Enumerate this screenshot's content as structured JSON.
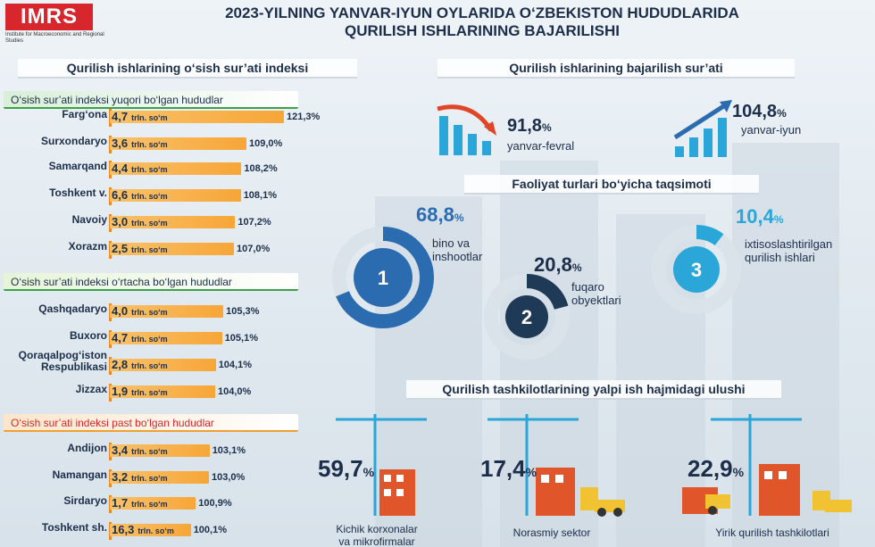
{
  "header": {
    "logo": "IMRS",
    "logo_sub": "Institute for Macroeconomic and Regional Studies",
    "title_line1": "2023-YILNING YANVAR-IYUN OYLARIDA O‘ZBEKISTON HUDUDLARIDA",
    "title_line2": "QURILISH ISHLARINING BAJARILISHI"
  },
  "index_section": {
    "title": "Qurilish ishlarining o‘sish sur’ati indeksi",
    "unit": "trln. so‘m",
    "groups": [
      {
        "label": "O‘sish sur’ati indeksi yuqori bo‘lgan hududlar",
        "rows": [
          {
            "name": "Farg‘ona",
            "value": "4,7",
            "pct": "121,3%",
            "index": 121.3
          },
          {
            "name": "Surxondaryo",
            "value": "3,6",
            "pct": "109,0%",
            "index": 109.0
          },
          {
            "name": "Samarqand",
            "value": "4,4",
            "pct": "108,2%",
            "index": 108.2
          },
          {
            "name": "Toshkent v.",
            "value": "6,6",
            "pct": "108,1%",
            "index": 108.1
          },
          {
            "name": "Navoiy",
            "value": "3,0",
            "pct": "107,2%",
            "index": 107.2
          },
          {
            "name": "Xorazm",
            "value": "2,5",
            "pct": "107,0%",
            "index": 107.0
          }
        ]
      },
      {
        "label": "O‘sish sur’ati indeksi o‘rtacha bo‘lgan hududlar",
        "rows": [
          {
            "name": "Qashqadaryo",
            "value": "4,0",
            "pct": "105,3%",
            "index": 105.3
          },
          {
            "name": "Buxoro",
            "value": "4,7",
            "pct": "105,1%",
            "index": 105.1
          },
          {
            "name": "Qoraqalpog‘iston Respublikasi",
            "value": "2,8",
            "pct": "104,1%",
            "index": 104.1
          },
          {
            "name": "Jizzax",
            "value": "1,9",
            "pct": "104,0%",
            "index": 104.0
          }
        ]
      },
      {
        "label": "O‘sish sur’ati indeksi past bo‘lgan hududlar",
        "rows": [
          {
            "name": "Andijon",
            "value": "3,4",
            "pct": "103,1%",
            "index": 103.1
          },
          {
            "name": "Namangan",
            "value": "3,2",
            "pct": "103,0%",
            "index": 103.0
          },
          {
            "name": "Sirdaryo",
            "value": "1,7",
            "pct": "100,9%",
            "index": 100.9
          },
          {
            "name": "Toshkent sh.",
            "value": "16,3",
            "pct": "100,1%",
            "index": 100.1
          }
        ]
      }
    ]
  },
  "rate_section": {
    "title": "Qurilish ishlarining bajarilish sur’ati",
    "left": {
      "value": "91,8",
      "pct_sign": "%",
      "label": "yanvar-fevral"
    },
    "right": {
      "value": "104,8",
      "pct_sign": "%",
      "label": "yanvar-iyun"
    }
  },
  "activity_section": {
    "title": "Faoliyat turlari bo‘yicha taqsimoti",
    "items": [
      {
        "num": "1",
        "value": "68,8",
        "share": 68.8,
        "label1": "bino va",
        "label2": "inshootlar",
        "color": "#2b6cb0"
      },
      {
        "num": "2",
        "value": "20,8",
        "share": 20.8,
        "label1": "fuqaro",
        "label2": "obyektlari",
        "color": "#1f3a57"
      },
      {
        "num": "3",
        "value": "10,4",
        "share": 10.4,
        "label1": "ixtisoslashtirilgan",
        "label2": "qurilish ishlari",
        "color": "#2aa6d8"
      }
    ]
  },
  "org_section": {
    "title": "Qurilish tashkilotlarining yalpi ish hajmidagi ulushi",
    "items": [
      {
        "value": "59,7",
        "label1": "Kichik korxonalar",
        "label2": "va mikrofirmalar"
      },
      {
        "value": "17,4",
        "label1": "Norasmiy sektor",
        "label2": ""
      },
      {
        "value": "22,9",
        "label1": "Yirik qurilish tashkilotlari",
        "label2": ""
      }
    ]
  },
  "pct_sign": "%"
}
